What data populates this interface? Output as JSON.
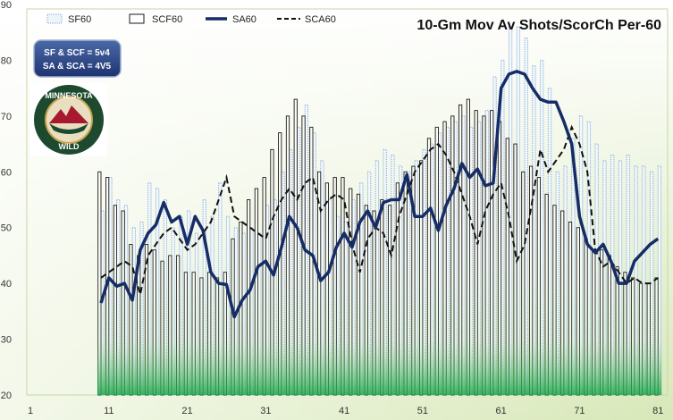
{
  "chart_data": {
    "type": "bar",
    "title": "10-Gm Mov Av Shots/ScorCh Per-60",
    "xlabel": "",
    "ylabel": "",
    "ylim": [
      20,
      90
    ],
    "xlim": [
      1,
      82
    ],
    "yticks": [
      20,
      30,
      40,
      50,
      60,
      70,
      80,
      90
    ],
    "xticks": [
      1,
      11,
      21,
      31,
      41,
      51,
      61,
      71,
      81
    ],
    "grid": false,
    "legend": "top",
    "x": [
      10,
      11,
      12,
      13,
      14,
      15,
      16,
      17,
      18,
      19,
      20,
      21,
      22,
      23,
      24,
      25,
      26,
      27,
      28,
      29,
      30,
      31,
      32,
      33,
      34,
      35,
      36,
      37,
      38,
      39,
      40,
      41,
      42,
      43,
      44,
      45,
      46,
      47,
      48,
      49,
      50,
      51,
      52,
      53,
      54,
      55,
      56,
      57,
      58,
      59,
      60,
      61,
      62,
      63,
      64,
      65,
      66,
      67,
      68,
      69,
      70,
      71,
      72,
      73,
      74,
      75,
      76,
      77,
      78,
      79,
      80,
      81
    ],
    "series": [
      {
        "name": "SF60",
        "type": "bar",
        "color": "#7fa8d8",
        "values": [
          53,
          59,
          55,
          54,
          50,
          51,
          58,
          57,
          55,
          50,
          52,
          53,
          49,
          55,
          52,
          58,
          52,
          50,
          49,
          50,
          49,
          54,
          55,
          60,
          64,
          68,
          72,
          67,
          62,
          55,
          52,
          51,
          55,
          58,
          60,
          62,
          64,
          63,
          61,
          60,
          62,
          64,
          65,
          67,
          68,
          69,
          70,
          68,
          69,
          71,
          77,
          80,
          86,
          86,
          84,
          79,
          80,
          75,
          60,
          61,
          66,
          70,
          69,
          65,
          62,
          63,
          62,
          63,
          61,
          61,
          60,
          61
        ]
      },
      {
        "name": "SCF60",
        "type": "bar",
        "color": "#1a1a1a",
        "values": [
          60,
          59,
          54,
          53,
          47,
          45,
          47,
          46,
          44,
          45,
          45,
          42,
          42,
          41,
          42,
          41,
          42,
          48,
          51,
          55,
          57,
          59,
          64,
          67,
          70,
          73,
          70,
          68,
          60,
          58,
          59,
          59,
          57,
          56,
          54,
          53,
          55,
          54,
          58,
          60,
          61,
          62,
          66,
          68,
          69,
          70,
          72,
          73,
          71,
          70,
          71,
          69,
          66,
          65,
          60,
          61,
          59,
          56,
          54,
          53,
          51,
          50,
          48,
          46,
          46,
          45,
          43,
          42,
          41,
          40,
          40,
          41
        ]
      },
      {
        "name": "SA60",
        "type": "line",
        "color": "#152c66",
        "values": [
          36.5,
          41,
          39.5,
          40,
          37,
          46,
          49,
          50.5,
          54.5,
          51,
          52,
          47,
          52,
          49.5,
          42,
          40,
          39.8,
          34,
          37,
          38.8,
          43,
          44,
          41.5,
          46.5,
          52,
          50,
          46,
          45,
          40.5,
          42,
          46.5,
          49,
          46.5,
          51,
          53,
          50,
          54.5,
          55,
          55,
          59.5,
          52,
          52,
          53.5,
          49.5,
          54,
          57,
          61.5,
          59,
          60.5,
          57.5,
          58,
          75,
          77.5,
          78,
          77.5,
          75,
          73,
          72.5,
          72.5,
          69,
          65,
          52,
          47,
          45.5,
          47,
          44,
          40,
          40,
          44,
          45.5,
          47,
          48
        ]
      },
      {
        "name": "SCA60",
        "type": "line",
        "color": "#111111",
        "values": [
          41,
          42,
          43,
          44,
          43,
          38,
          45,
          47,
          49,
          50,
          48,
          46,
          47,
          49,
          51,
          55,
          59,
          52,
          51,
          50,
          49,
          48,
          52,
          55,
          57,
          55,
          58,
          59,
          53,
          55,
          56,
          55,
          47,
          42,
          48,
          50,
          49,
          45,
          52,
          56,
          60,
          62,
          64,
          65,
          63,
          60,
          56,
          52,
          47,
          53,
          56,
          58,
          52,
          44,
          47,
          55,
          64,
          60,
          62,
          64,
          68,
          65,
          60,
          46,
          43,
          44,
          42,
          40,
          41,
          40,
          40,
          41
        ]
      }
    ]
  },
  "badge": {
    "line1": "SF & SCF = 5v4",
    "line2": "SA & SCA = 4V5"
  },
  "logo": {
    "top_text": "MINNESOTA",
    "bottom_text": "WILD",
    "colors": {
      "green": "#1d4a2f",
      "cream": "#e9dfc0",
      "red": "#a6192e",
      "gold": "#c9a34a"
    }
  },
  "colors": {
    "sf60": "#7fa8d8",
    "scf60": "#1a1a1a",
    "sa60": "#152c66",
    "sca60": "#111111"
  }
}
